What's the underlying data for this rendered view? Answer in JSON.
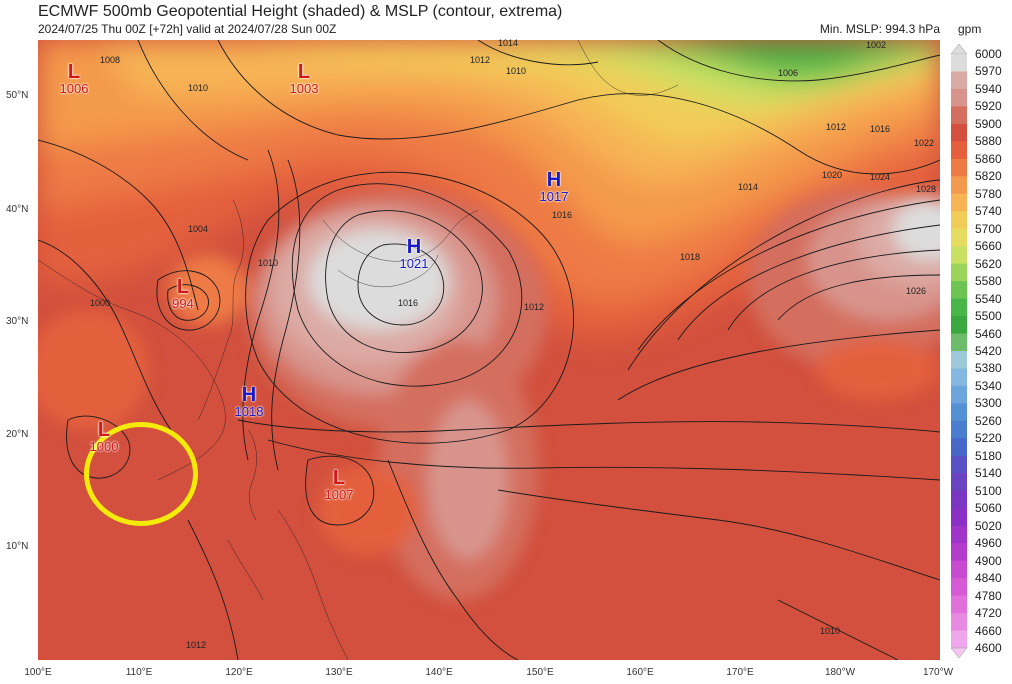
{
  "header": {
    "title": "ECMWF 500mb Geopotential Height (shaded) & MSLP (contour, extrema)",
    "subtitle": "2024/07/25 Thu 00Z [+72h] valid at 2024/07/28 Sun 00Z",
    "min_mslp": "Min. MSLP: 994.3 hPa"
  },
  "colorbar": {
    "unit": "gpm",
    "labels": [
      "6000",
      "5970",
      "5940",
      "5920",
      "5900",
      "5880",
      "5860",
      "5820",
      "5780",
      "5740",
      "5700",
      "5660",
      "5620",
      "5580",
      "5540",
      "5500",
      "5460",
      "5420",
      "5380",
      "5340",
      "5300",
      "5260",
      "5220",
      "5180",
      "5140",
      "5100",
      "5060",
      "5020",
      "4960",
      "4900",
      "4840",
      "4780",
      "4720",
      "4660",
      "4600"
    ],
    "colors": [
      "#dcdcdc",
      "#dcaaa4",
      "#d8948c",
      "#d46e5e",
      "#d2503d",
      "#e4603c",
      "#ee7a44",
      "#f49a4c",
      "#f6b454",
      "#f2cc58",
      "#e6dc62",
      "#c9e062",
      "#9bd45a",
      "#6cc452",
      "#48b648",
      "#3aa83e",
      "#6cbc6c",
      "#9cc8d8",
      "#84b8e0",
      "#6ca4dc",
      "#5490d4",
      "#4a7cd0",
      "#4868c8",
      "#5a52c4",
      "#6a44c0",
      "#7a36c0",
      "#8a30c4",
      "#a034c8",
      "#b43ccc",
      "#c84ad0",
      "#d65ad6",
      "#e070dc",
      "#e88ae2",
      "#f0a6ea",
      "#f6c4f0"
    ]
  },
  "axes": {
    "lat_labels": [
      "50°N",
      "40°N",
      "30°N",
      "20°N",
      "10°N"
    ],
    "lon_labels": [
      "100°E",
      "110°E",
      "120°E",
      "130°E",
      "140°E",
      "150°E",
      "160°E",
      "170°E",
      "180°W",
      "170°W"
    ]
  },
  "pressure_systems": [
    {
      "type": "L",
      "value": "1006"
    },
    {
      "type": "L",
      "value": "1003"
    },
    {
      "type": "L",
      "value": "994"
    },
    {
      "type": "L",
      "value": "1000"
    },
    {
      "type": "L",
      "value": "1007"
    },
    {
      "type": "H",
      "value": "1017"
    },
    {
      "type": "H",
      "value": "1021"
    },
    {
      "type": "H",
      "value": "1018"
    }
  ],
  "contour_labels": [
    "1008",
    "1010",
    "1012",
    "1014",
    "1006",
    "1002",
    "1016",
    "1018",
    "1020",
    "1022",
    "1024",
    "1026",
    "1028",
    "1004",
    "1000"
  ],
  "highlight": {
    "color": "#f5eb0a"
  }
}
